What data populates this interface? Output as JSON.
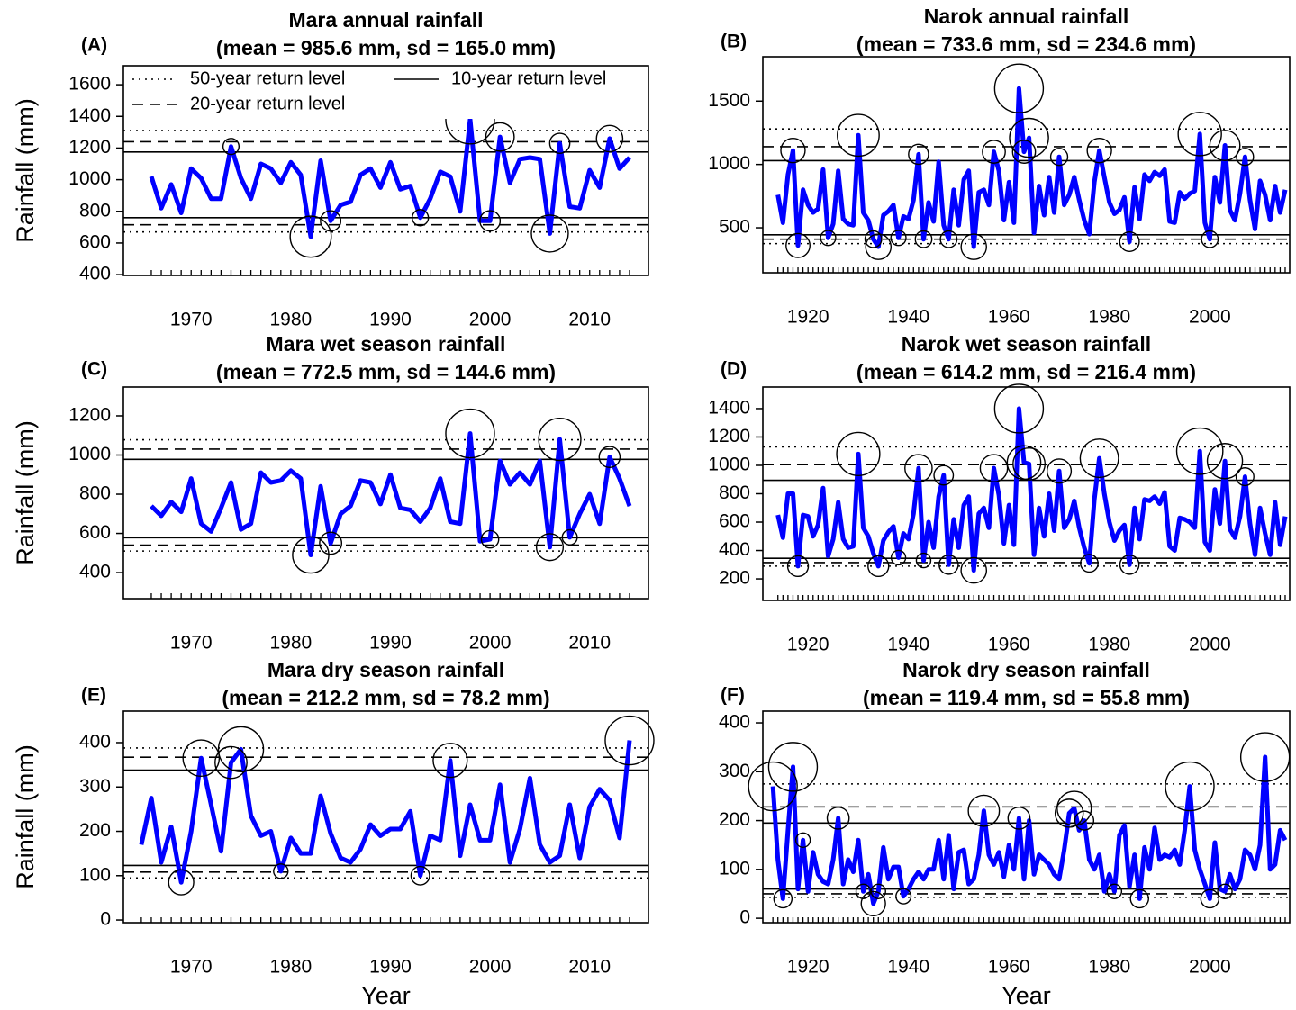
{
  "chart_data": [
    {
      "type": "line",
      "panel_label": "(A)",
      "title": "Mara annual rainfall",
      "subtitle": "(mean = 985.6 mm, sd = 165.0 mm)",
      "mean": 985.6,
      "sd": 165.0,
      "ylabel": "Rainfall (mm)",
      "color": "#0000ff",
      "legend": [
        {
          "label": "50-year return level",
          "style": "dotted"
        },
        {
          "label": "20-year return level",
          "style": "dashed"
        },
        {
          "label": "10-year return level",
          "style": "solid"
        }
      ],
      "legend_position": "top",
      "return_levels": [
        [
          670,
          1310
        ],
        [
          715,
          1240
        ],
        [
          760,
          1175
        ]
      ],
      "x": [
        1966,
        1967,
        1968,
        1969,
        1970,
        1971,
        1972,
        1973,
        1974,
        1975,
        1976,
        1977,
        1978,
        1979,
        1980,
        1981,
        1982,
        1983,
        1984,
        1985,
        1986,
        1987,
        1988,
        1989,
        1990,
        1991,
        1992,
        1993,
        1994,
        1995,
        1996,
        1997,
        1998,
        1999,
        2000,
        2001,
        2002,
        2003,
        2004,
        2005,
        2006,
        2007,
        2008,
        2009,
        2010,
        2011,
        2012,
        2013,
        2014
      ],
      "values": [
        1020,
        820,
        970,
        790,
        1070,
        1010,
        880,
        880,
        1210,
        1010,
        880,
        1100,
        1070,
        980,
        1110,
        1030,
        640,
        1120,
        740,
        840,
        860,
        1030,
        1070,
        950,
        1110,
        940,
        960,
        760,
        880,
        1050,
        1020,
        800,
        1380,
        740,
        740,
        1270,
        980,
        1130,
        1140,
        1130,
        660,
        1230,
        830,
        820,
        1060,
        950,
        1260,
        1070,
        1140
      ],
      "circled_x": [
        1974,
        1982,
        1984,
        1993,
        1998,
        2000,
        2001,
        2006,
        2007,
        2012
      ],
      "xlim": [
        1963.2,
        2015.9
      ],
      "ylim": [
        395,
        1720
      ],
      "xticks": [
        1970,
        1980,
        1990,
        2000,
        2010
      ],
      "yticks": [
        400,
        600,
        800,
        1000,
        1200,
        1400,
        1600
      ]
    },
    {
      "type": "line",
      "panel_label": "(B)",
      "title": "Narok annual rainfall",
      "subtitle": "(mean = 733.6 mm, sd = 234.6 mm)",
      "mean": 733.6,
      "sd": 234.6,
      "color": "#0000ff",
      "return_levels": [
        [
          375,
          1280
        ],
        [
          410,
          1140
        ],
        [
          445,
          1030
        ]
      ],
      "x": [
        1914,
        1915,
        1916,
        1917,
        1918,
        1919,
        1920,
        1921,
        1922,
        1923,
        1924,
        1925,
        1926,
        1927,
        1928,
        1929,
        1930,
        1931,
        1932,
        1933,
        1934,
        1935,
        1936,
        1937,
        1938,
        1939,
        1940,
        1941,
        1942,
        1943,
        1944,
        1945,
        1946,
        1947,
        1948,
        1949,
        1950,
        1951,
        1952,
        1953,
        1954,
        1955,
        1956,
        1957,
        1958,
        1959,
        1960,
        1961,
        1962,
        1963,
        1964,
        1965,
        1966,
        1967,
        1968,
        1969,
        1970,
        1971,
        1972,
        1973,
        1974,
        1975,
        1976,
        1977,
        1978,
        1979,
        1980,
        1981,
        1982,
        1983,
        1984,
        1985,
        1986,
        1987,
        1988,
        1989,
        1990,
        1991,
        1992,
        1993,
        1994,
        1995,
        1996,
        1997,
        1998,
        1999,
        2000,
        2001,
        2002,
        2003,
        2004,
        2005,
        2006,
        2007,
        2008,
        2009,
        2010,
        2011,
        2012,
        2013,
        2014,
        2015
      ],
      "values": [
        760,
        540,
        920,
        1110,
        360,
        800,
        680,
        620,
        650,
        960,
        420,
        530,
        950,
        570,
        530,
        520,
        1230,
        620,
        560,
        410,
        350,
        600,
        630,
        680,
        420,
        590,
        570,
        720,
        1080,
        410,
        700,
        550,
        1020,
        520,
        410,
        800,
        520,
        880,
        950,
        350,
        780,
        800,
        680,
        1100,
        950,
        560,
        860,
        540,
        1600,
        1100,
        1210,
        460,
        830,
        600,
        900,
        620,
        1060,
        680,
        760,
        900,
        720,
        560,
        450,
        860,
        1110,
        900,
        700,
        610,
        640,
        740,
        390,
        820,
        570,
        920,
        870,
        940,
        910,
        960,
        550,
        540,
        780,
        730,
        770,
        790,
        1240,
        540,
        410,
        900,
        700,
        1150,
        640,
        560,
        770,
        1060,
        720,
        490,
        870,
        760,
        560,
        830,
        620,
        800
      ],
      "circled_x": [
        1917,
        1918,
        1924,
        1930,
        1933,
        1934,
        1938,
        1942,
        1943,
        1948,
        1953,
        1957,
        1962,
        1963,
        1964,
        1970,
        1978,
        1984,
        1998,
        2000,
        2003,
        2007
      ],
      "xlim": [
        1911.0,
        2015.9
      ],
      "ylim": [
        145,
        1850
      ],
      "xticks": [
        1920,
        1940,
        1960,
        1980,
        2000
      ],
      "yticks": [
        500,
        1000,
        1500
      ]
    },
    {
      "type": "line",
      "panel_label": "(C)",
      "title": "Mara wet season rainfall",
      "subtitle": "(mean = 772.5 mm, sd = 144.6 mm)",
      "mean": 772.5,
      "sd": 144.6,
      "ylabel": "Rainfall (mm)",
      "color": "#0000ff",
      "return_levels": [
        [
          510,
          1078
        ],
        [
          540,
          1030
        ],
        [
          578,
          978
        ]
      ],
      "x": [
        1966,
        1967,
        1968,
        1969,
        1970,
        1971,
        1972,
        1973,
        1974,
        1975,
        1976,
        1977,
        1978,
        1979,
        1980,
        1981,
        1982,
        1983,
        1984,
        1985,
        1986,
        1987,
        1988,
        1989,
        1990,
        1991,
        1992,
        1993,
        1994,
        1995,
        1996,
        1997,
        1998,
        1999,
        2000,
        2001,
        2002,
        2003,
        2004,
        2005,
        2006,
        2007,
        2008,
        2009,
        2010,
        2011,
        2012,
        2013,
        2014
      ],
      "values": [
        740,
        690,
        760,
        710,
        880,
        650,
        610,
        730,
        860,
        620,
        650,
        910,
        860,
        870,
        920,
        880,
        490,
        840,
        550,
        700,
        740,
        870,
        860,
        750,
        900,
        730,
        720,
        660,
        730,
        880,
        660,
        650,
        1110,
        560,
        570,
        970,
        850,
        910,
        850,
        970,
        530,
        1080,
        580,
        700,
        800,
        650,
        990,
        880,
        740
      ],
      "circled_x": [
        1982,
        1984,
        1998,
        2000,
        2006,
        2007,
        2008,
        2012
      ],
      "xlim": [
        1963.2,
        2015.9
      ],
      "ylim": [
        267,
        1347
      ],
      "xticks": [
        1970,
        1980,
        1990,
        2000,
        2010
      ],
      "yticks": [
        400,
        600,
        800,
        1000,
        1200
      ]
    },
    {
      "type": "line",
      "panel_label": "(D)",
      "title": "Narok wet season rainfall",
      "subtitle": "(mean = 614.2 mm, sd = 216.4 mm)",
      "mean": 614.2,
      "sd": 216.4,
      "color": "#0000ff",
      "return_levels": [
        [
          290,
          1130
        ],
        [
          315,
          1005
        ],
        [
          345,
          895
        ]
      ],
      "x": [
        1914,
        1915,
        1916,
        1917,
        1918,
        1919,
        1920,
        1921,
        1922,
        1923,
        1924,
        1925,
        1926,
        1927,
        1928,
        1929,
        1930,
        1931,
        1932,
        1933,
        1934,
        1935,
        1936,
        1937,
        1938,
        1939,
        1940,
        1941,
        1942,
        1943,
        1944,
        1945,
        1946,
        1947,
        1948,
        1949,
        1950,
        1951,
        1952,
        1953,
        1954,
        1955,
        1956,
        1957,
        1958,
        1959,
        1960,
        1961,
        1962,
        1963,
        1964,
        1965,
        1966,
        1967,
        1968,
        1969,
        1970,
        1971,
        1972,
        1973,
        1974,
        1975,
        1976,
        1977,
        1978,
        1979,
        1980,
        1981,
        1982,
        1983,
        1984,
        1985,
        1986,
        1987,
        1988,
        1989,
        1990,
        1991,
        1992,
        1993,
        1994,
        1995,
        1996,
        1997,
        1998,
        1999,
        2000,
        2001,
        2002,
        2003,
        2004,
        2005,
        2006,
        2007,
        2008,
        2009,
        2010,
        2011,
        2012,
        2013,
        2014,
        2015
      ],
      "values": [
        650,
        490,
        800,
        800,
        290,
        650,
        640,
        500,
        580,
        840,
        360,
        480,
        740,
        480,
        420,
        430,
        1080,
        560,
        500,
        380,
        290,
        470,
        530,
        570,
        350,
        520,
        480,
        660,
        980,
        330,
        600,
        420,
        780,
        930,
        300,
        620,
        420,
        720,
        780,
        260,
        660,
        700,
        560,
        980,
        790,
        450,
        720,
        440,
        1400,
        1020,
        1010,
        370,
        700,
        500,
        800,
        540,
        960,
        560,
        620,
        750,
        560,
        420,
        310,
        760,
        1050,
        800,
        600,
        470,
        540,
        580,
        300,
        700,
        480,
        760,
        750,
        780,
        730,
        810,
        430,
        400,
        630,
        620,
        600,
        560,
        1100,
        460,
        400,
        830,
        590,
        1030,
        550,
        490,
        640,
        920,
        590,
        370,
        700,
        520,
        370,
        740,
        440,
        640
      ],
      "circled_x": [
        1918,
        1930,
        1934,
        1938,
        1942,
        1943,
        1947,
        1948,
        1953,
        1957,
        1962,
        1963,
        1964,
        1970,
        1976,
        1978,
        1984,
        1998,
        2003,
        2007
      ],
      "xlim": [
        1911.0,
        2015.9
      ],
      "ylim": [
        48,
        1552
      ],
      "xticks": [
        1920,
        1940,
        1960,
        1980,
        2000
      ],
      "yticks": [
        200,
        400,
        600,
        800,
        1000,
        1200,
        1400
      ]
    },
    {
      "type": "line",
      "panel_label": "(E)",
      "title": "Mara dry season rainfall",
      "subtitle": "(mean = 212.2 mm, sd = 78.2 mm)",
      "mean": 212.2,
      "sd": 78.2,
      "ylabel": "Rainfall (mm)",
      "xlabel": "Year",
      "color": "#0000ff",
      "return_levels": [
        [
          95,
          388
        ],
        [
          108,
          367
        ],
        [
          123,
          338
        ]
      ],
      "x": [
        1965,
        1966,
        1967,
        1968,
        1969,
        1970,
        1971,
        1972,
        1973,
        1974,
        1975,
        1976,
        1977,
        1978,
        1979,
        1980,
        1981,
        1982,
        1983,
        1984,
        1985,
        1986,
        1987,
        1988,
        1989,
        1990,
        1991,
        1992,
        1993,
        1994,
        1995,
        1996,
        1997,
        1998,
        1999,
        2000,
        2001,
        2002,
        2003,
        2004,
        2005,
        2006,
        2007,
        2008,
        2009,
        2010,
        2011,
        2012,
        2013,
        2014
      ],
      "values": [
        170,
        275,
        130,
        210,
        85,
        200,
        365,
        260,
        155,
        355,
        385,
        235,
        190,
        200,
        110,
        185,
        150,
        150,
        280,
        195,
        140,
        130,
        160,
        215,
        190,
        205,
        205,
        245,
        100,
        190,
        180,
        360,
        145,
        260,
        180,
        180,
        305,
        130,
        205,
        320,
        170,
        130,
        145,
        260,
        140,
        255,
        295,
        270,
        185,
        405
      ],
      "circled_x": [
        1969,
        1971,
        1974,
        1975,
        1979,
        1993,
        1996,
        2014
      ],
      "xlim": [
        1963.2,
        2015.9
      ],
      "ylim": [
        -6,
        471
      ],
      "xticks": [
        1970,
        1980,
        1990,
        2000,
        2010
      ],
      "yticks": [
        0,
        100,
        200,
        300,
        400
      ]
    },
    {
      "type": "line",
      "panel_label": "(F)",
      "title": "Narok dry season rainfall",
      "subtitle": "(mean = 119.4 mm, sd = 55.8 mm)",
      "mean": 119.4,
      "sd": 55.8,
      "xlabel": "Year",
      "color": "#0000ff",
      "return_levels": [
        [
          43,
          275
        ],
        [
          50,
          228
        ],
        [
          60,
          195
        ]
      ],
      "x": [
        1913,
        1914,
        1915,
        1916,
        1917,
        1918,
        1919,
        1920,
        1921,
        1922,
        1923,
        1924,
        1925,
        1926,
        1927,
        1928,
        1929,
        1930,
        1931,
        1932,
        1933,
        1934,
        1935,
        1936,
        1937,
        1938,
        1939,
        1940,
        1941,
        1942,
        1943,
        1944,
        1945,
        1946,
        1947,
        1948,
        1949,
        1950,
        1951,
        1952,
        1953,
        1954,
        1955,
        1956,
        1957,
        1958,
        1959,
        1960,
        1961,
        1962,
        1963,
        1964,
        1965,
        1966,
        1967,
        1968,
        1969,
        1970,
        1971,
        1972,
        1973,
        1974,
        1975,
        1976,
        1977,
        1978,
        1979,
        1980,
        1981,
        1982,
        1983,
        1984,
        1985,
        1986,
        1987,
        1988,
        1989,
        1990,
        1991,
        1992,
        1993,
        1994,
        1995,
        1996,
        1997,
        1998,
        1999,
        2000,
        2001,
        2002,
        2003,
        2004,
        2005,
        2006,
        2007,
        2008,
        2009,
        2010,
        2011,
        2012,
        2013,
        2014,
        2015
      ],
      "values": [
        270,
        120,
        40,
        180,
        310,
        60,
        160,
        55,
        135,
        90,
        75,
        70,
        120,
        205,
        70,
        120,
        95,
        160,
        55,
        90,
        30,
        55,
        145,
        80,
        105,
        105,
        45,
        60,
        80,
        95,
        80,
        100,
        100,
        160,
        80,
        170,
        60,
        135,
        140,
        70,
        80,
        130,
        220,
        130,
        110,
        135,
        85,
        150,
        100,
        205,
        80,
        200,
        90,
        130,
        120,
        110,
        90,
        80,
        140,
        215,
        225,
        180,
        200,
        120,
        100,
        130,
        55,
        90,
        55,
        170,
        190,
        65,
        130,
        40,
        145,
        100,
        185,
        120,
        130,
        125,
        140,
        110,
        180,
        270,
        140,
        100,
        70,
        40,
        155,
        60,
        55,
        90,
        60,
        80,
        140,
        130,
        100,
        150,
        330,
        100,
        110,
        180,
        160
      ],
      "circled_x": [
        1913,
        1915,
        1917,
        1919,
        1926,
        1931,
        1933,
        1934,
        1939,
        1955,
        1962,
        1972,
        1973,
        1975,
        1981,
        1986,
        1996,
        2000,
        2003,
        2011
      ],
      "xlim": [
        1911.0,
        2015.9
      ],
      "ylim": [
        -9,
        424
      ],
      "xticks": [
        1920,
        1940,
        1960,
        1980,
        2000
      ],
      "yticks": [
        0,
        100,
        200,
        300,
        400
      ]
    }
  ]
}
